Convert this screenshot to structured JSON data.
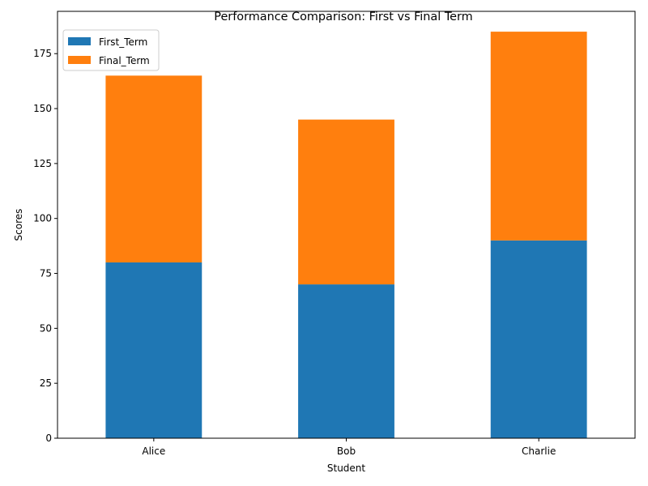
{
  "chart_data": {
    "type": "bar",
    "stacked": true,
    "title": "Performance Comparison: First vs Final Term",
    "xlabel": "Student",
    "ylabel": "Scores",
    "categories": [
      "Alice",
      "Bob",
      "Charlie"
    ],
    "series": [
      {
        "name": "First_Term",
        "values": [
          80,
          70,
          90
        ],
        "color": "#1f77b4"
      },
      {
        "name": "Final_Term",
        "values": [
          85,
          75,
          95
        ],
        "color": "#ff7f0e"
      }
    ],
    "ylim": [
      0,
      194.25
    ],
    "yticks": [
      0,
      25,
      50,
      75,
      100,
      125,
      150,
      175
    ],
    "grid": false,
    "legend_position": "top-left"
  }
}
